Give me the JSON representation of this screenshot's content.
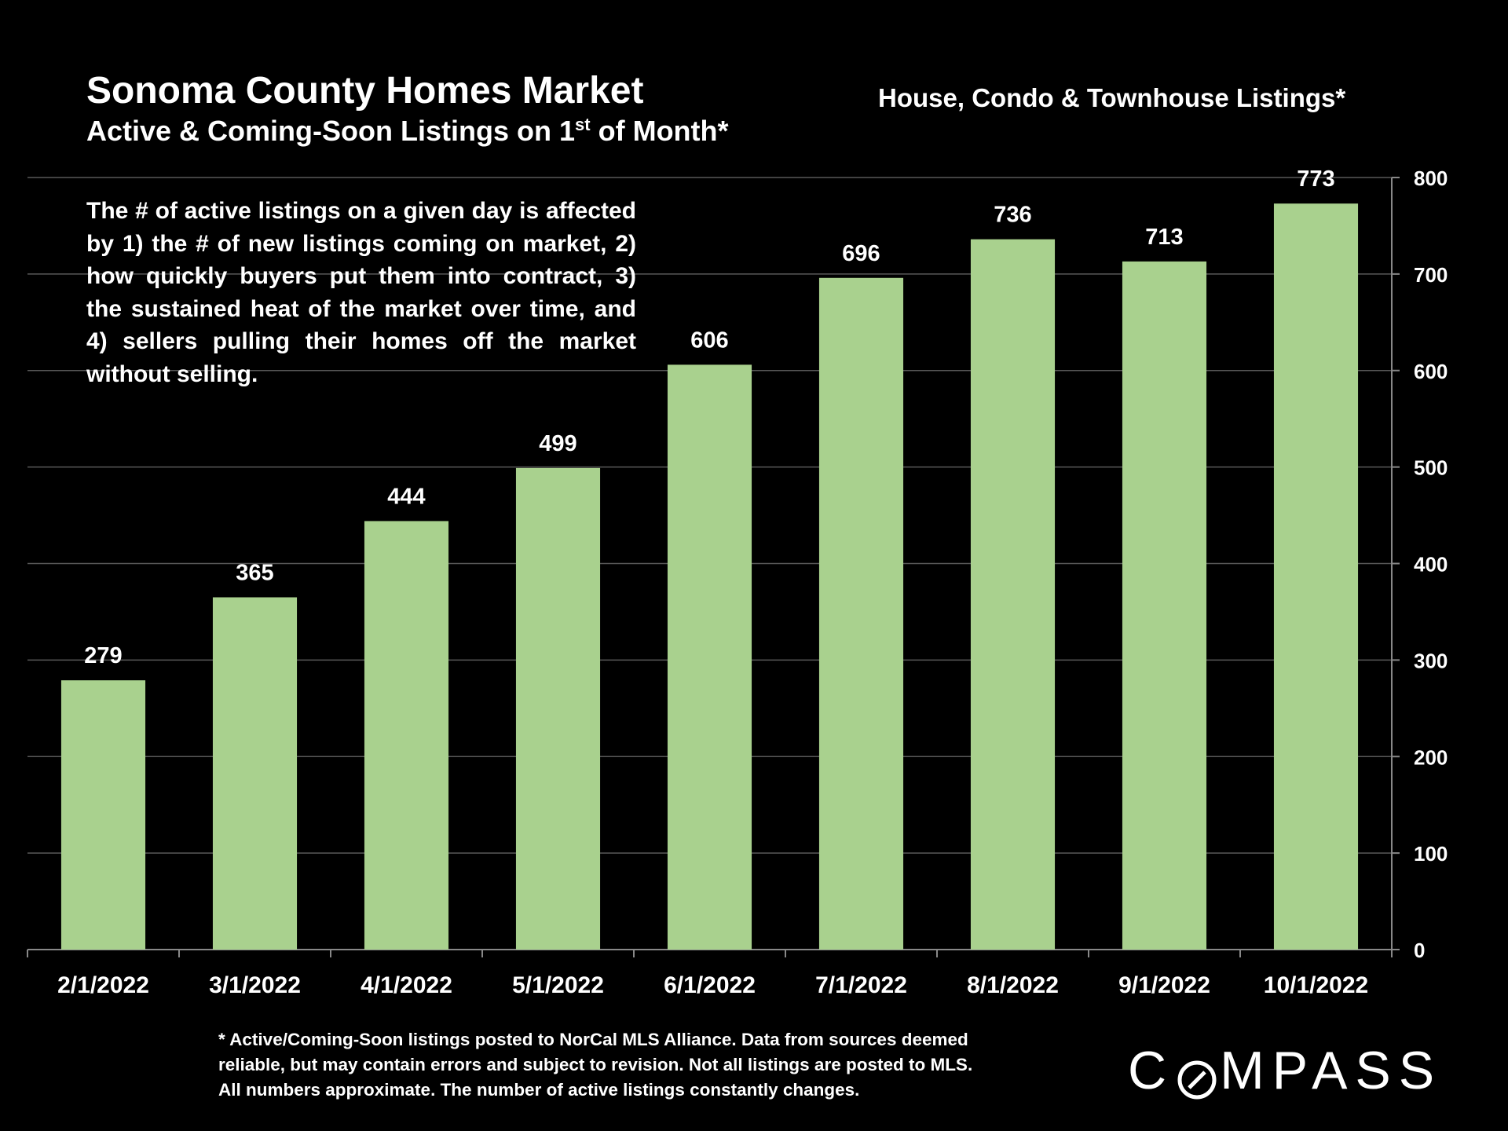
{
  "header": {
    "title": "Sonoma County Homes Market",
    "subtitle_main": "Active & Coming-Soon Listings on 1",
    "subtitle_sup": "st",
    "subtitle_end": " of Month*",
    "series_title": "House, Condo & Townhouse Listings*"
  },
  "annotation": "The # of active listings on a given day is affected by 1) the # of new listings coming on market, 2) how quickly buyers put them into contract, 3) the sustained heat of the market over time, and 4) sellers pulling their homes off the market without selling.",
  "footnote": {
    "line1": "* Active/Coming-Soon listings posted to NorCal MLS Alliance.  Data from sources deemed",
    "line2": "reliable, but may contain errors and subject to revision.  Not all listings are posted to MLS.",
    "line3": "All numbers approximate. The number of active listings constantly changes."
  },
  "logo": {
    "before": "C",
    "after": "MPASS"
  },
  "colors": {
    "bar": "#a9d18e",
    "background": "#000000",
    "grid": "#595959",
    "text": "#ffffff"
  },
  "chart_data": {
    "type": "bar",
    "title": "House, Condo & Townhouse Listings*",
    "categories": [
      "2/1/2022",
      "3/1/2022",
      "4/1/2022",
      "5/1/2022",
      "6/1/2022",
      "7/1/2022",
      "8/1/2022",
      "9/1/2022",
      "10/1/2022"
    ],
    "values": [
      279,
      365,
      444,
      499,
      606,
      696,
      736,
      713,
      773
    ],
    "ylim": [
      0,
      800
    ],
    "yticks": [
      0,
      100,
      200,
      300,
      400,
      500,
      600,
      700,
      800
    ],
    "y_axis_side": "right",
    "grid": true,
    "data_labels": true
  }
}
